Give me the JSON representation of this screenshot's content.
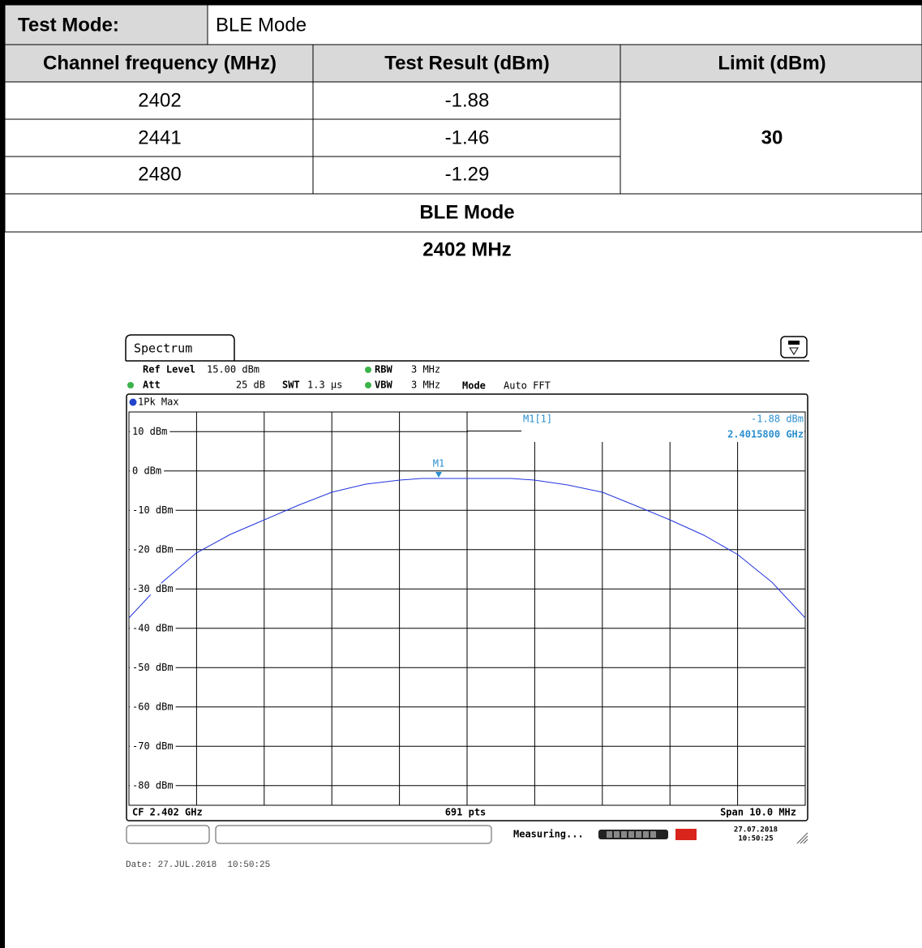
{
  "table": {
    "mode_label": "Test Mode:",
    "mode_value": "BLE Mode",
    "headers": [
      "Channel frequency (MHz)",
      "Test Result (dBm)",
      "Limit (dBm)"
    ],
    "rows": [
      [
        2402,
        -1.88
      ],
      [
        2441,
        -1.46
      ],
      [
        2480,
        -1.29
      ]
    ],
    "limit": 30
  },
  "section_title": "BLE Mode",
  "plot_title": "2402 MHz",
  "spectrum": {
    "tab": "Spectrum",
    "ref_level_label": "Ref Level",
    "ref_level": "15.00 dBm",
    "att_label": "Att",
    "att": "25 dB",
    "swt_label": "SWT",
    "swt": "1.3 µs",
    "rbw_label": "RBW",
    "rbw": "3 MHz",
    "vbw_label": "VBW",
    "vbw": "3 MHz",
    "mode_label": "Mode",
    "mode": "Auto FFT",
    "trace": "1Pk Max",
    "marker_name": "M1[1]",
    "marker_value": "-1.88 dBm",
    "marker_freq": "2.4015800 GHz",
    "marker": "M1",
    "y_labels": [
      "10 dBm",
      "0 dBm",
      "-10 dBm",
      "-20 dBm",
      "-30 dBm",
      "-40 dBm",
      "-50 dBm",
      "-60 dBm",
      "-70 dBm",
      "-80 dBm"
    ],
    "cf": "CF 2.402 GHz",
    "pts": "691 pts",
    "span": "Span 10.0 MHz",
    "status": "Measuring...",
    "date_short": "27.07.2018",
    "time_short": "10:50:25"
  },
  "date_line": "Date: 27.JUL.2018  10:50:25"
}
